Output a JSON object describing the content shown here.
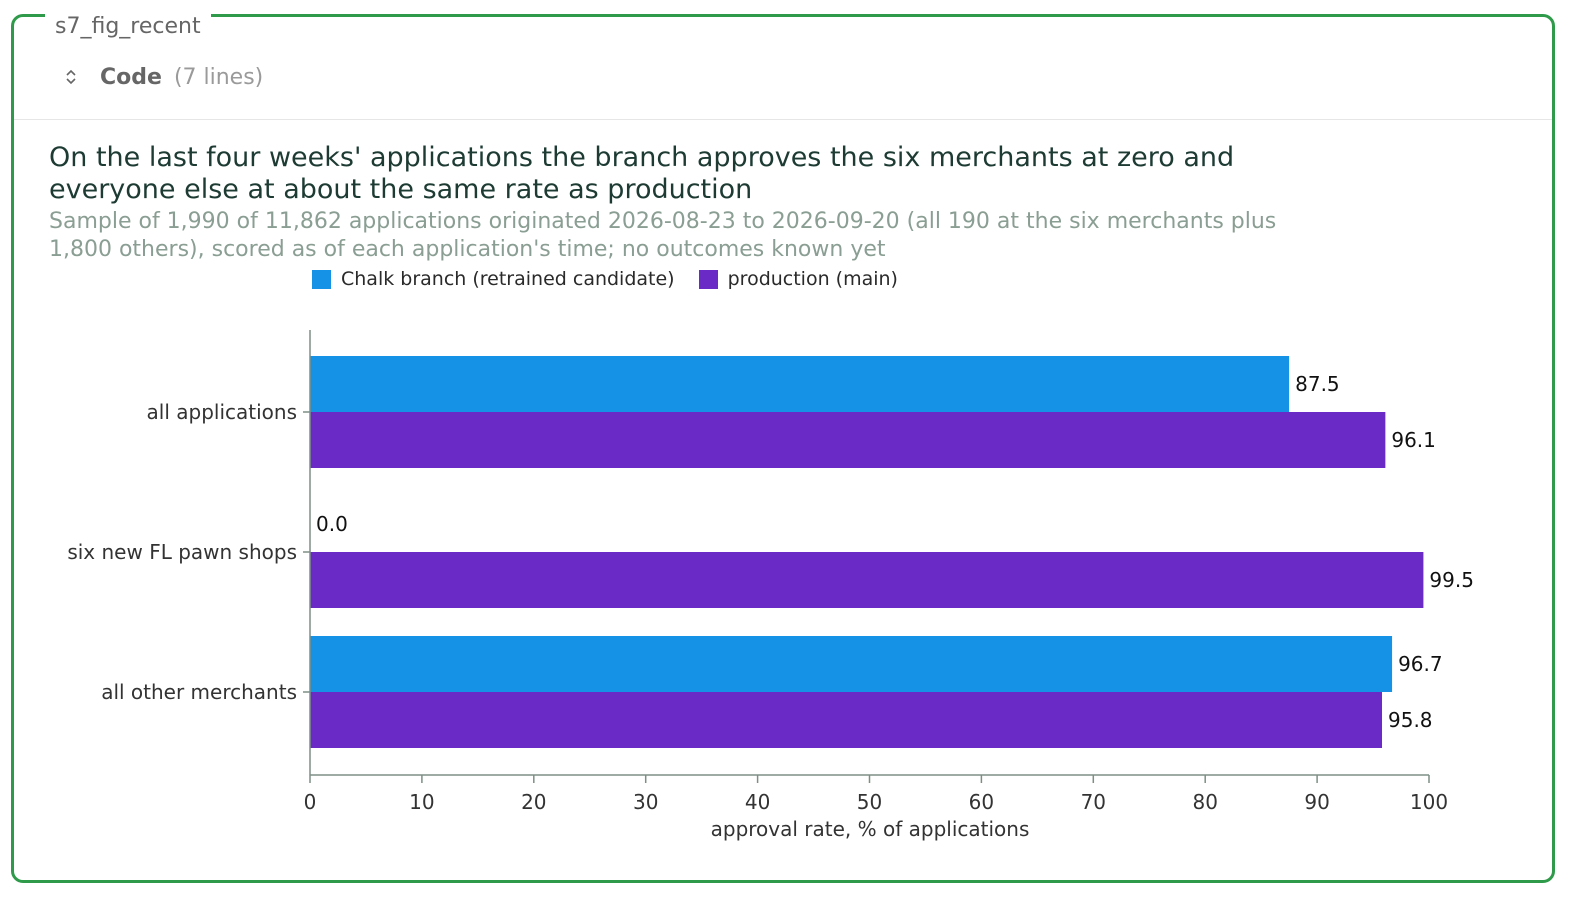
{
  "cell": {
    "name": "s7_fig_recent",
    "code_label": "Code",
    "code_lines": "(7 lines)"
  },
  "chart_data": {
    "type": "bar",
    "orientation": "horizontal",
    "title": "On the last four weeks' applications the branch approves the six merchants at zero and everyone else at about the same rate as production",
    "subtitle": "Sample of 1,990 of 11,862 applications originated 2026-08-23 to 2026-09-20 (all 190 at the six merchants plus 1,800 others), scored as of each application's time; no outcomes known yet",
    "categories": [
      "all applications",
      "six new FL pawn shops",
      "all other merchants"
    ],
    "series": [
      {
        "name": "Chalk branch (retrained candidate)",
        "color": "#1591e6",
        "values": [
          87.5,
          0.0,
          96.7
        ]
      },
      {
        "name": "production (main)",
        "color": "#6a2ac6",
        "values": [
          96.1,
          99.5,
          95.8
        ]
      }
    ],
    "xlabel": "approval rate, % of applications",
    "ylabel": "",
    "xlim": [
      0,
      100
    ],
    "xticks": [
      0,
      10,
      20,
      30,
      40,
      50,
      60,
      70,
      80,
      90,
      100
    ],
    "legend_position": "top",
    "grid": false
  }
}
